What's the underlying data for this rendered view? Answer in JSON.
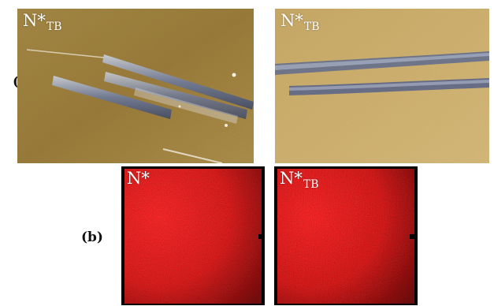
{
  "figure": {
    "row_a": {
      "label": "(a)",
      "panels": [
        {
          "base": "N*",
          "sub": "TB"
        },
        {
          "base": "N*",
          "sub": "TB"
        }
      ]
    },
    "row_b": {
      "label": "(b)",
      "panels": [
        {
          "base": "N*",
          "sub": ""
        },
        {
          "base": "N*",
          "sub": "TB"
        }
      ]
    }
  },
  "colors": {
    "texture_dark": "#8a6a2c",
    "texture_light": "#cfae6a",
    "streak": "#5d6a8c",
    "red_field": "#e01f1f"
  }
}
